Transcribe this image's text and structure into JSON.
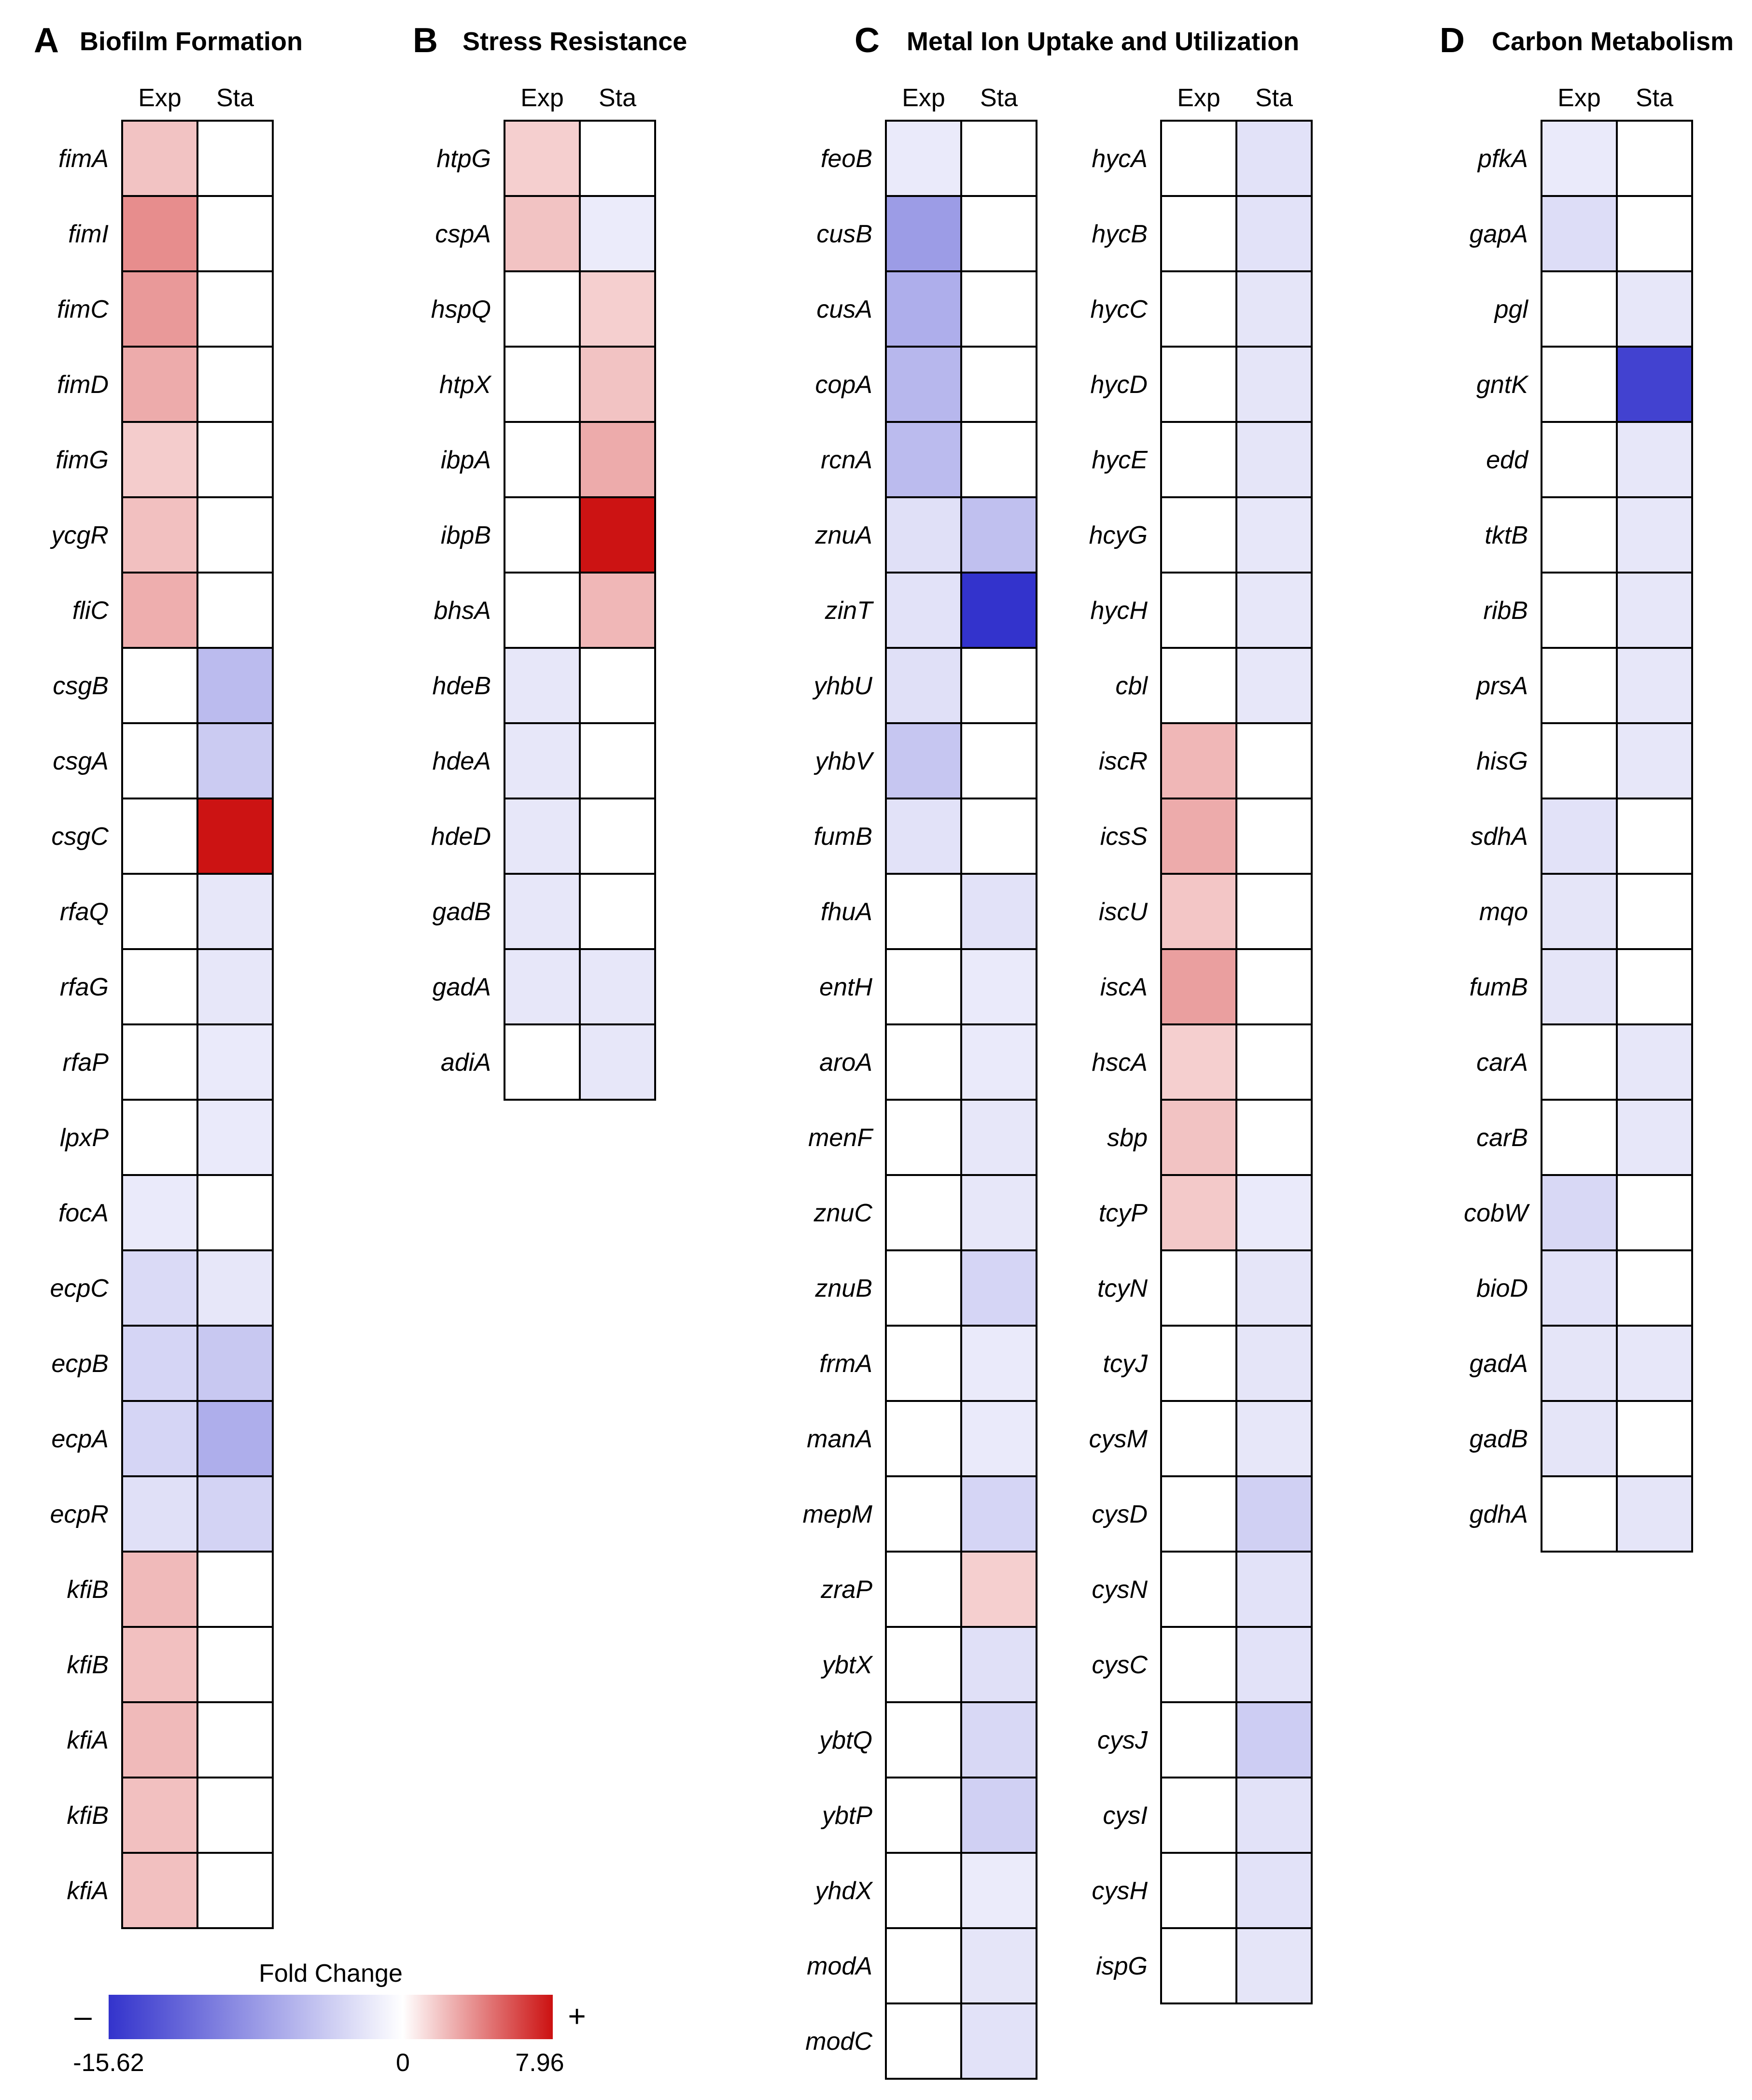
{
  "chart_data": [
    {
      "type": "heatmap",
      "panel": "A",
      "title": "Biofilm Formation",
      "columns": [
        "Exp",
        "Sta"
      ],
      "genes": [
        "fimA",
        "fimI",
        "fimC",
        "fimD",
        "fimG",
        "ycgR",
        "fliC",
        "csgB",
        "csgA",
        "csgC",
        "rfaQ",
        "rfaG",
        "rfaP",
        "lpxP",
        "focA",
        "ecpC",
        "ecpB",
        "ecpA",
        "ecpR",
        "kfiB",
        "kfiB",
        "kfiA",
        "kfiB",
        "kfiA"
      ],
      "values": [
        [
          2.0,
          0
        ],
        [
          3.8,
          0
        ],
        [
          3.4,
          0
        ],
        [
          2.8,
          0
        ],
        [
          1.7,
          0
        ],
        [
          2.1,
          0
        ],
        [
          2.7,
          0
        ],
        [
          0,
          -5.2
        ],
        [
          0,
          -4.0
        ],
        [
          0,
          7.9
        ],
        [
          0,
          -1.8
        ],
        [
          0,
          -1.8
        ],
        [
          0,
          -1.6
        ],
        [
          0,
          -1.6
        ],
        [
          -1.6,
          0
        ],
        [
          -2.8,
          -1.8
        ],
        [
          -3.2,
          -4.2
        ],
        [
          -3.2,
          -6.2
        ],
        [
          -2.4,
          -3.4
        ],
        [
          2.3,
          0
        ],
        [
          2.1,
          0
        ],
        [
          2.3,
          0
        ],
        [
          2.1,
          0
        ],
        [
          2.1,
          0
        ]
      ]
    },
    {
      "type": "heatmap",
      "panel": "B",
      "title": "Stress Resistance",
      "columns": [
        "Exp",
        "Sta"
      ],
      "genes": [
        "htpG",
        "cspA",
        "hspQ",
        "htpX",
        "ibpA",
        "ibpB",
        "bhsA",
        "hdeB",
        "hdeA",
        "hdeD",
        "gadB",
        "gadA",
        "adiA"
      ],
      "values": [
        [
          1.6,
          0
        ],
        [
          2.0,
          -1.5
        ],
        [
          0,
          1.6
        ],
        [
          0,
          2.0
        ],
        [
          0,
          2.8
        ],
        [
          0,
          7.9
        ],
        [
          0,
          2.4
        ],
        [
          -1.8,
          0
        ],
        [
          -1.8,
          0
        ],
        [
          -1.8,
          0
        ],
        [
          -1.8,
          0
        ],
        [
          -1.8,
          -1.8
        ],
        [
          0,
          -1.8
        ]
      ]
    },
    {
      "type": "heatmap",
      "panel": "C",
      "title": "Metal Ion Uptake and Utilization",
      "columns": [
        "Exp",
        "Sta"
      ],
      "genes": [
        "feoB",
        "cusB",
        "cusA",
        "copA",
        "rcnA",
        "znuA",
        "zinT",
        "yhbU",
        "yhbV",
        "fumB",
        "fhuA",
        "entH",
        "aroA",
        "menF",
        "znuC",
        "znuB",
        "frmA",
        "manA",
        "mepM",
        "zraP",
        "ybtX",
        "ybtQ",
        "ybtP",
        "yhdX",
        "modA",
        "modC"
      ],
      "values": [
        [
          -1.6,
          0
        ],
        [
          -7.6,
          0
        ],
        [
          -6.2,
          0
        ],
        [
          -5.5,
          0
        ],
        [
          -5.2,
          0
        ],
        [
          -2.4,
          -4.8
        ],
        [
          -2.2,
          -15.6
        ],
        [
          -2.4,
          0
        ],
        [
          -4.4,
          0
        ],
        [
          -2.2,
          0
        ],
        [
          0,
          -2.2
        ],
        [
          0,
          -1.6
        ],
        [
          0,
          -1.6
        ],
        [
          0,
          -1.8
        ],
        [
          0,
          -1.8
        ],
        [
          0,
          -3.2
        ],
        [
          0,
          -1.6
        ],
        [
          0,
          -1.6
        ],
        [
          0,
          -3.2
        ],
        [
          0,
          1.6
        ],
        [
          0,
          -2.4
        ],
        [
          0,
          -3.0
        ],
        [
          0,
          -3.6
        ],
        [
          0,
          -1.5
        ],
        [
          0,
          -2.0
        ],
        [
          0,
          -2.2
        ]
      ]
    },
    {
      "type": "heatmap",
      "panel": "C",
      "title": "",
      "columns": [
        "Exp",
        "Sta"
      ],
      "genes": [
        "hycA",
        "hycB",
        "hycC",
        "hycD",
        "hycE",
        "hcyG",
        "hycH",
        "cbl",
        "iscR",
        "icsS",
        "iscU",
        "iscA",
        "hscA",
        "sbp",
        "tcyP",
        "tcyN",
        "tcyJ",
        "cysM",
        "cysD",
        "cysN",
        "cysC",
        "cysJ",
        "cysI",
        "cysH",
        "ispG"
      ],
      "values": [
        [
          0,
          -2.2
        ],
        [
          0,
          -2.2
        ],
        [
          0,
          -2.0
        ],
        [
          0,
          -2.0
        ],
        [
          0,
          -2.0
        ],
        [
          0,
          -1.8
        ],
        [
          0,
          -1.8
        ],
        [
          0,
          -1.8
        ],
        [
          2.4,
          0
        ],
        [
          2.8,
          0
        ],
        [
          1.9,
          0
        ],
        [
          3.2,
          0
        ],
        [
          1.6,
          0
        ],
        [
          2.0,
          0
        ],
        [
          1.8,
          -1.6
        ],
        [
          0,
          -2.0
        ],
        [
          0,
          -2.0
        ],
        [
          0,
          -1.8
        ],
        [
          0,
          -3.6
        ],
        [
          0,
          -2.2
        ],
        [
          0,
          -2.2
        ],
        [
          0,
          -3.8
        ],
        [
          0,
          -2.2
        ],
        [
          0,
          -2.2
        ],
        [
          0,
          -2.0
        ]
      ]
    },
    {
      "type": "heatmap",
      "panel": "D",
      "title": "Carbon Metabolism",
      "columns": [
        "Exp",
        "Sta"
      ],
      "genes": [
        "pfkA",
        "gapA",
        "pgl",
        "gntK",
        "edd",
        "tktB",
        "ribB",
        "prsA",
        "hisG",
        "sdhA",
        "mqo",
        "fumB",
        "carA",
        "carB",
        "cobW",
        "bioD",
        "gadA",
        "gadB",
        "gdhA"
      ],
      "values": [
        [
          -1.6,
          0
        ],
        [
          -2.6,
          0
        ],
        [
          0,
          -1.8
        ],
        [
          0,
          -14.5
        ],
        [
          0,
          -1.8
        ],
        [
          0,
          -1.8
        ],
        [
          0,
          -1.8
        ],
        [
          0,
          -1.8
        ],
        [
          0,
          -1.8
        ],
        [
          -2.2,
          0
        ],
        [
          -2.0,
          0
        ],
        [
          -2.0,
          0
        ],
        [
          0,
          -1.8
        ],
        [
          0,
          -1.8
        ],
        [
          -3.0,
          0
        ],
        [
          -2.2,
          0
        ],
        [
          -2.0,
          -1.8
        ],
        [
          -2.0,
          0
        ],
        [
          0,
          -2.0
        ]
      ]
    }
  ],
  "legend": {
    "title": "Fold Change",
    "min_label": "-15.62",
    "mid_label": "0",
    "max_label": "7.96",
    "minus_sign": "–",
    "plus_sign": "+",
    "min": -15.62,
    "max": 7.96,
    "colors": {
      "negative": "#3333cc",
      "neutral": "#ffffff",
      "positive": "#cc1111"
    }
  }
}
